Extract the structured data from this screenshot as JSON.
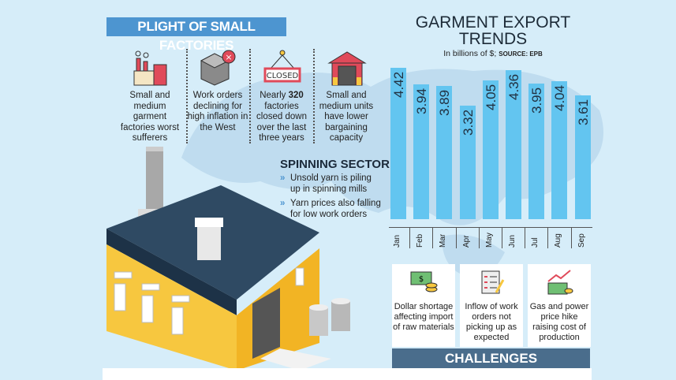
{
  "header": {
    "title": "PLIGHT OF SMALL FACTORIES"
  },
  "points": [
    {
      "icon": "factory-icon",
      "text": "Small and medium garment factories worst sufferers"
    },
    {
      "icon": "box-cancel-icon",
      "text": "Work orders declining for high inflation in the West"
    },
    {
      "icon": "closed-sign-icon",
      "text_pre": "Nearly ",
      "text_bold": "320",
      "text": " factories closed down over the last three years"
    },
    {
      "icon": "warehouse-icon",
      "text": "Small and medium units have lower bargaining capacity"
    }
  ],
  "spinning": {
    "title": "SPINNING SECTOR",
    "bullets": [
      "Unsold yarn is piling up in spinning mills",
      "Yarn prices also falling for low work orders"
    ]
  },
  "chart_data": {
    "type": "bar",
    "title": "GARMENT EXPORT TRENDS",
    "subtitle": "In billions of $;",
    "source": "SOURCE: EPB",
    "categories": [
      "Jan",
      "Feb",
      "Mar",
      "Apr",
      "May",
      "Jun",
      "Jul",
      "Aug",
      "Sep"
    ],
    "values": [
      4.42,
      3.94,
      3.89,
      3.32,
      4.05,
      4.36,
      3.95,
      4.04,
      3.61
    ],
    "data_labels": [
      "4.42",
      "3.94",
      "3.89",
      "3.32",
      "4.05",
      "4.36",
      "3.95",
      "4.04",
      "3.61"
    ],
    "ylim": [
      0,
      4.42
    ],
    "color": "#63c5f0",
    "grid": false
  },
  "challenges": {
    "title": "CHALLENGES",
    "items": [
      {
        "icon": "dollar-coins-icon",
        "text": "Dollar shortage affecting import of raw materials"
      },
      {
        "icon": "checklist-icon",
        "text": "Inflow of work orders not picking up as expected"
      },
      {
        "icon": "price-rise-icon",
        "text": "Gas and power price hike raising cost of production"
      }
    ]
  },
  "colors": {
    "background": "#d6edf9",
    "banner": "#4d95d0",
    "challenges_bar": "#4a6d8c",
    "wall": "#f7c73f",
    "roof": "#2f4a63"
  }
}
